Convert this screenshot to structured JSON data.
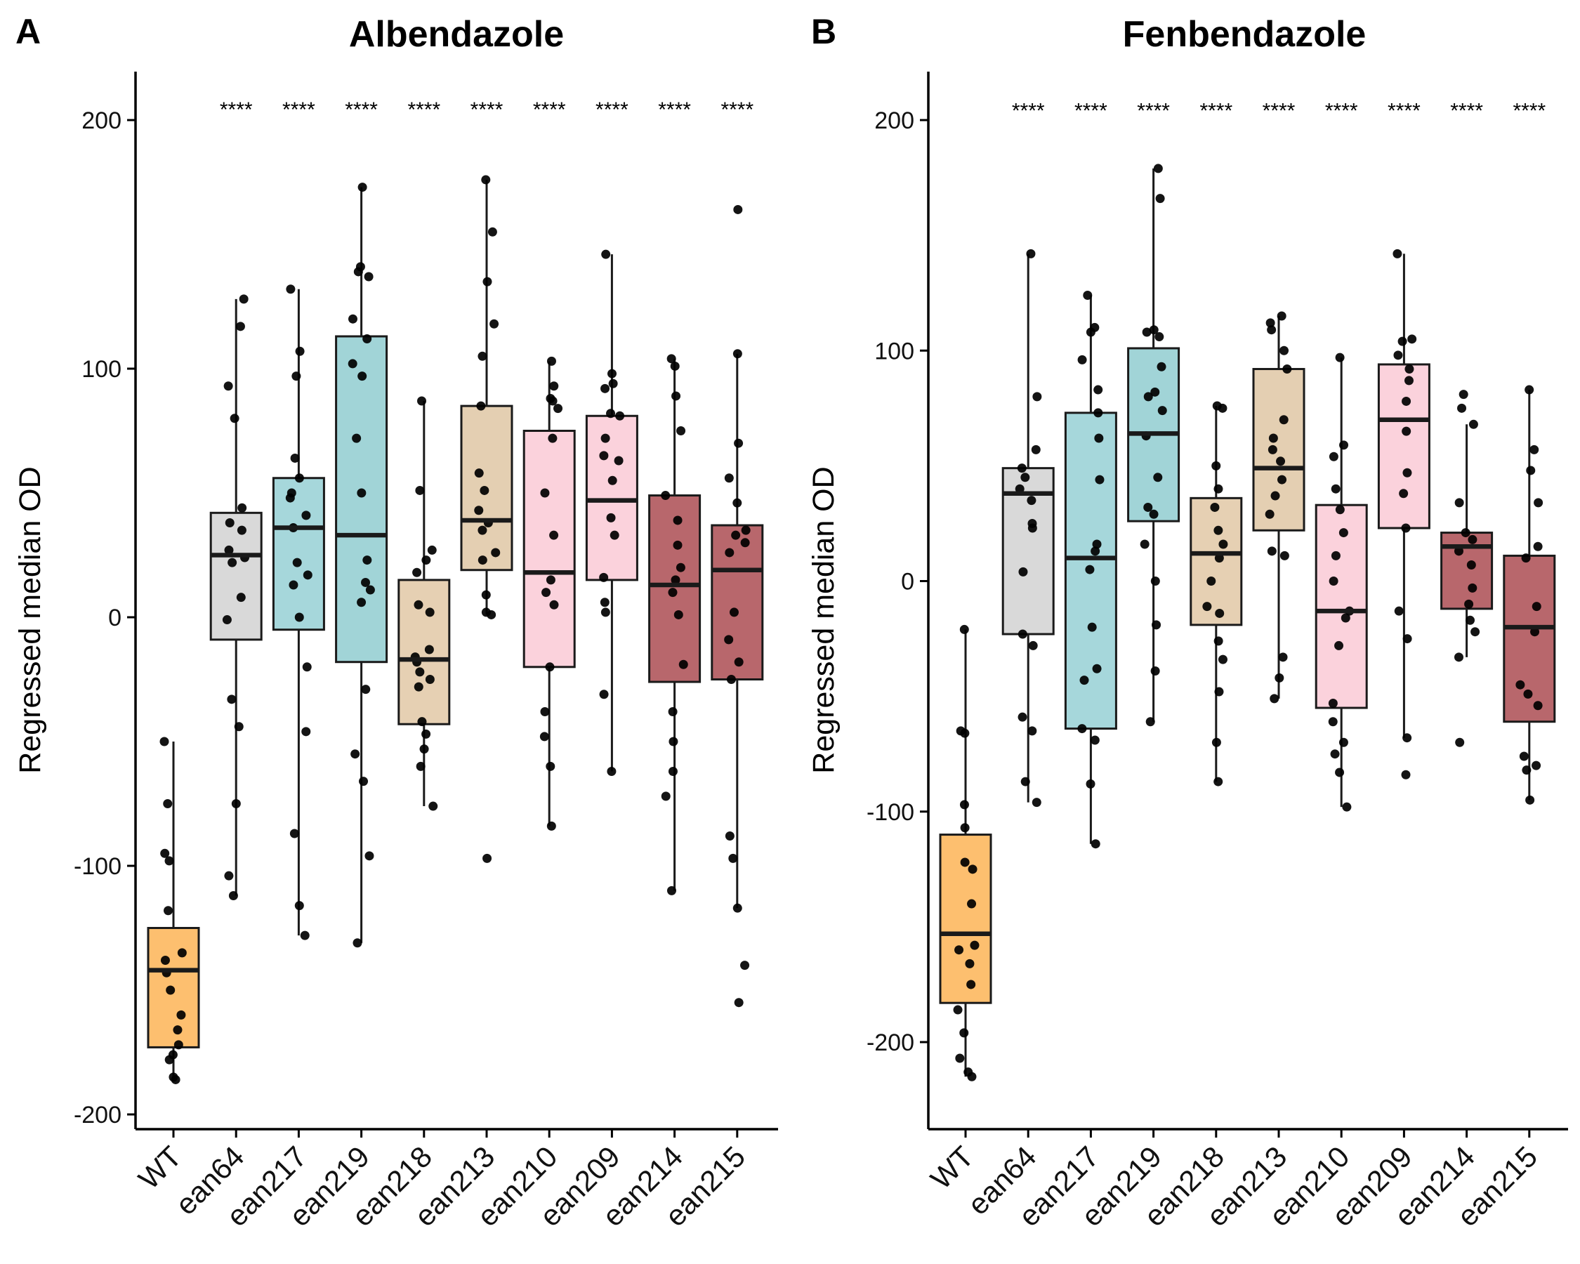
{
  "chart_data": [
    {
      "panel_letter": "A",
      "type": "box",
      "title": "Albendazole",
      "xlabel": "",
      "ylabel": "Regressed median OD",
      "ylim": [
        -205,
        220
      ],
      "yticks": [
        -200,
        -100,
        0,
        100,
        200
      ],
      "ytick_labels": [
        "-200",
        "-100",
        "0",
        "100",
        "200"
      ],
      "categories": [
        "WT",
        "ean64",
        "ean217",
        "ean219",
        "ean218",
        "ean213",
        "ean210",
        "ean209",
        "ean214",
        "ean215"
      ],
      "colors": [
        "#FDBF6F",
        "#D9D9D9",
        "#A6D7DB",
        "#A1D4D7",
        "#E6D0B3",
        "#E4CFB2",
        "#FBD2DC",
        "#FBD2DC",
        "#B8676C",
        "#B8676C"
      ],
      "significance": [
        "",
        "****",
        "****",
        "****",
        "****",
        "****",
        "****",
        "****",
        "****",
        "****"
      ],
      "significance_y": 206,
      "boxes": [
        {
          "whisker_low": -186,
          "q1": -173,
          "median": -142,
          "q3": -125,
          "whisker_high": -50
        },
        {
          "whisker_low": -112,
          "q1": -9,
          "median": 25,
          "q3": 42,
          "whisker_high": 128
        },
        {
          "whisker_low": -128,
          "q1": -5,
          "median": 36,
          "q3": 56,
          "whisker_high": 132
        },
        {
          "whisker_low": -131,
          "q1": -18,
          "median": 33,
          "q3": 113,
          "whisker_high": 173
        },
        {
          "whisker_low": -76,
          "q1": -43,
          "median": -17,
          "q3": 15,
          "whisker_high": 87
        },
        {
          "whisker_low": 1,
          "q1": 19,
          "median": 39,
          "q3": 85,
          "whisker_high": 176
        },
        {
          "whisker_low": -84,
          "q1": -20,
          "median": 18,
          "q3": 75,
          "whisker_high": 103
        },
        {
          "whisker_low": -62,
          "q1": 15,
          "median": 47,
          "q3": 81,
          "whisker_high": 146
        },
        {
          "whisker_low": -110,
          "q1": -26,
          "median": 13,
          "q3": 49,
          "whisker_high": 104
        },
        {
          "whisker_low": -117,
          "q1": -25,
          "median": 19,
          "q3": 37,
          "whisker_high": 106
        }
      ],
      "points": [
        [
          -50,
          -75,
          -95,
          -98,
          -118,
          -138,
          -135,
          -143,
          -150,
          -160,
          -166,
          -172,
          -176,
          -178,
          -185,
          -186
        ],
        [
          128,
          117,
          93,
          80,
          44,
          38,
          35,
          27,
          24,
          22,
          8,
          -1,
          -33,
          -44,
          -75,
          -104,
          -112
        ],
        [
          132,
          107,
          97,
          64,
          56,
          50,
          48,
          41,
          36,
          22,
          17,
          13,
          0,
          -20,
          -46,
          -87,
          -116,
          -128
        ],
        [
          173,
          141,
          139,
          137,
          120,
          112,
          102,
          97,
          72,
          50,
          23,
          14,
          11,
          6,
          -29,
          -55,
          -66,
          -96,
          -131
        ],
        [
          87,
          51,
          27,
          23,
          18,
          5,
          2,
          -13,
          -16,
          -18,
          -22,
          -25,
          -28,
          -42,
          -47,
          -53,
          -60,
          -76
        ],
        [
          176,
          155,
          135,
          118,
          105,
          85,
          58,
          51,
          43,
          38,
          35,
          26,
          23,
          9,
          2,
          1,
          -97
        ],
        [
          103,
          93,
          88,
          87,
          84,
          72,
          50,
          33,
          15,
          10,
          5,
          -20,
          -38,
          -48,
          -60,
          -84
        ],
        [
          146,
          98,
          94,
          92,
          82,
          81,
          72,
          65,
          63,
          55,
          40,
          33,
          16,
          6,
          2,
          -31,
          -62
        ],
        [
          104,
          101,
          89,
          75,
          49,
          39,
          29,
          20,
          15,
          10,
          1,
          -19,
          -38,
          -50,
          -62,
          -72,
          -110
        ],
        [
          164,
          106,
          70,
          56,
          46,
          35,
          33,
          30,
          26,
          2,
          -9,
          -18,
          -25,
          -88,
          -97,
          -117,
          -140,
          -155
        ]
      ]
    },
    {
      "panel_letter": "B",
      "type": "box",
      "title": "Fenbendazole",
      "xlabel": "",
      "ylabel": "Regressed median OD",
      "ylim": [
        -237,
        220
      ],
      "yticks": [
        -200,
        -100,
        0,
        100,
        200
      ],
      "ytick_labels": [
        "-200",
        "-100",
        "0",
        "100",
        "200"
      ],
      "categories": [
        "WT",
        "ean64",
        "ean217",
        "ean219",
        "ean218",
        "ean213",
        "ean210",
        "ean209",
        "ean214",
        "ean215"
      ],
      "colors": [
        "#FDBF6F",
        "#D9D9D9",
        "#A6D7DB",
        "#A1D4D7",
        "#E6D0B3",
        "#E4CFB2",
        "#FBD2DC",
        "#FBD2DC",
        "#B8676C",
        "#B8676C"
      ],
      "significance": [
        "",
        "****",
        "****",
        "****",
        "****",
        "****",
        "****",
        "****",
        "****",
        "****"
      ],
      "significance_y": 206,
      "boxes": [
        {
          "whisker_low": -215,
          "q1": -183,
          "median": -153,
          "q3": -110,
          "whisker_high": -21
        },
        {
          "whisker_low": -96,
          "q1": -23,
          "median": 38,
          "q3": 49,
          "whisker_high": 142
        },
        {
          "whisker_low": -114,
          "q1": -64,
          "median": 10,
          "q3": 73,
          "whisker_high": 124
        },
        {
          "whisker_low": -61,
          "q1": 26,
          "median": 64,
          "q3": 101,
          "whisker_high": 179
        },
        {
          "whisker_low": -87,
          "q1": -19,
          "median": 12,
          "q3": 36,
          "whisker_high": 76
        },
        {
          "whisker_low": -51,
          "q1": 22,
          "median": 49,
          "q3": 92,
          "whisker_high": 115
        },
        {
          "whisker_low": -98,
          "q1": -55,
          "median": -13,
          "q3": 33,
          "whisker_high": 97
        },
        {
          "whisker_low": -68,
          "q1": 23,
          "median": 70,
          "q3": 94,
          "whisker_high": 142
        },
        {
          "whisker_low": -33,
          "q1": -12,
          "median": 15,
          "q3": 21,
          "whisker_high": 68
        },
        {
          "whisker_low": -95,
          "q1": -61,
          "median": -20,
          "q3": 11,
          "whisker_high": 83
        }
      ],
      "points": [
        [
          -21,
          -65,
          -66,
          -97,
          -107,
          -122,
          -125,
          -140,
          -158,
          -160,
          -166,
          -175,
          -186,
          -196,
          -207,
          -213,
          -215
        ],
        [
          142,
          80,
          57,
          49,
          45,
          40,
          35,
          25,
          23,
          4,
          -23,
          -28,
          -59,
          -65,
          -87,
          -96
        ],
        [
          124,
          110,
          108,
          96,
          83,
          73,
          62,
          44,
          16,
          13,
          5,
          -20,
          -38,
          -43,
          -64,
          -69,
          -88,
          -114
        ],
        [
          179,
          166,
          109,
          108,
          106,
          93,
          82,
          80,
          74,
          63,
          45,
          32,
          29,
          16,
          0,
          -19,
          -39,
          -61
        ],
        [
          76,
          75,
          50,
          40,
          32,
          22,
          16,
          10,
          0,
          -11,
          -14,
          -26,
          -34,
          -48,
          -70,
          -87
        ],
        [
          115,
          112,
          109,
          100,
          92,
          70,
          62,
          57,
          52,
          44,
          37,
          29,
          13,
          11,
          -33,
          -42,
          -51
        ],
        [
          97,
          59,
          54,
          40,
          31,
          21,
          11,
          0,
          -13,
          -16,
          -28,
          -53,
          -61,
          -70,
          -75,
          -83,
          -98
        ],
        [
          142,
          105,
          104,
          98,
          92,
          87,
          78,
          65,
          47,
          38,
          23,
          -13,
          -25,
          -68,
          -84
        ],
        [
          81,
          75,
          68,
          34,
          21,
          18,
          13,
          7,
          -3,
          -10,
          -17,
          -22,
          -33,
          -70
        ],
        [
          83,
          57,
          48,
          34,
          15,
          10,
          -11,
          -22,
          -45,
          -49,
          -54,
          -76,
          -80,
          -82,
          -95
        ]
      ]
    }
  ]
}
